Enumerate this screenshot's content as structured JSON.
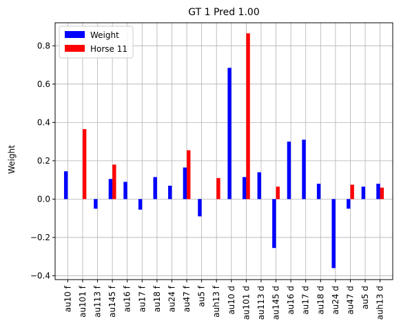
{
  "chart_data": {
    "type": "bar",
    "title": "GT 1 Pred 1.00",
    "xlabel": "",
    "ylabel": "Weight",
    "ylim": [
      -0.42,
      0.92
    ],
    "yticks": [
      -0.4,
      -0.2,
      0.0,
      0.2,
      0.4,
      0.6,
      0.8
    ],
    "ytick_labels": [
      "−0.4",
      "−0.2",
      "0.0",
      "0.2",
      "0.4",
      "0.6",
      "0.8"
    ],
    "grid": true,
    "legend_position": "top-left",
    "categories": [
      "au10 f",
      "au101 f",
      "au113 f",
      "au145 f",
      "au16 f",
      "au17 f",
      "au18 f",
      "au24 f",
      "au47 f",
      "au5 f",
      "auh13 f",
      "au10 d",
      "au101 d",
      "au113 d",
      "au145 d",
      "au16 d",
      "au17 d",
      "au18 d",
      "au24 d",
      "au47 d",
      "au5 d",
      "auh13 d"
    ],
    "series": [
      {
        "name": "Weight",
        "color": "#0000ff",
        "values": [
          0.145,
          0.0,
          -0.05,
          0.105,
          0.09,
          -0.055,
          0.115,
          0.07,
          0.165,
          -0.09,
          0.0,
          0.685,
          0.115,
          0.14,
          -0.255,
          0.3,
          0.31,
          0.08,
          -0.36,
          -0.05,
          0.065,
          0.08
        ]
      },
      {
        "name": "Horse 11",
        "color": "#ff0000",
        "values": [
          0.0,
          0.365,
          0.0,
          0.18,
          0.0,
          0.0,
          0.0,
          0.0,
          0.255,
          0.0,
          0.11,
          0.0,
          0.865,
          0.0,
          0.065,
          0.0,
          0.0,
          0.0,
          0.0,
          0.075,
          0.0,
          0.06
        ]
      }
    ]
  }
}
